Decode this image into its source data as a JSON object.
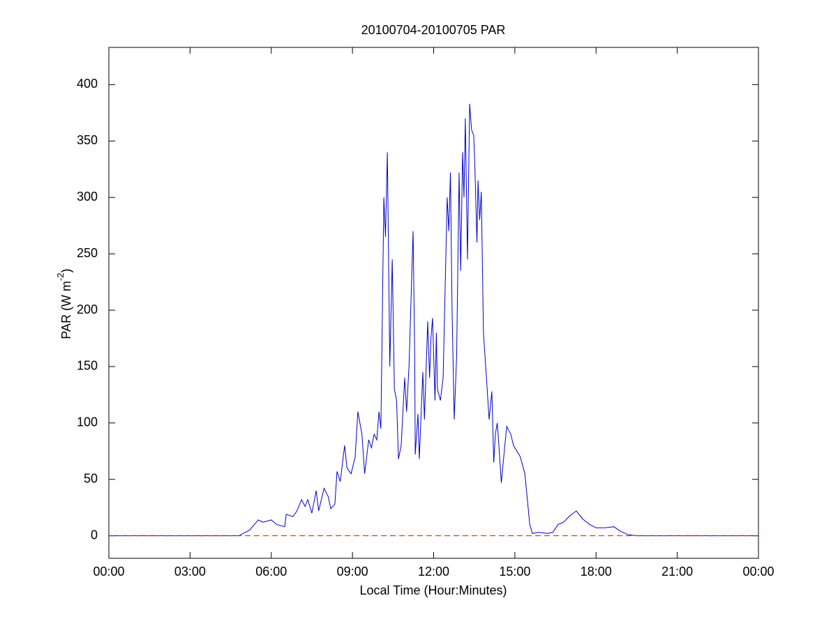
{
  "chart_data": {
    "type": "line",
    "title": "20100704-20100705 PAR",
    "xlabel": "Local Time (Hour:Minutes)",
    "ylabel": {
      "text": "PAR (W m",
      "sup": "-2",
      "end": ")"
    },
    "xlim": [
      0,
      24
    ],
    "ylim": [
      -20,
      433
    ],
    "xticks": [
      {
        "value": 0,
        "label": "00:00"
      },
      {
        "value": 3,
        "label": "03:00"
      },
      {
        "value": 6,
        "label": "06:00"
      },
      {
        "value": 9,
        "label": "09:00"
      },
      {
        "value": 12,
        "label": "12:00"
      },
      {
        "value": 15,
        "label": "15:00"
      },
      {
        "value": 18,
        "label": "18:00"
      },
      {
        "value": 21,
        "label": "21:00"
      },
      {
        "value": 24,
        "label": "00:00"
      }
    ],
    "yticks": [
      0,
      50,
      100,
      150,
      200,
      250,
      300,
      350,
      400
    ],
    "grid": false,
    "reference_line": {
      "value": 0,
      "color": "#ff0000",
      "style": "dashed"
    },
    "series": [
      {
        "color": "#0000cc",
        "x": [
          0,
          4.8,
          5.2,
          5.52,
          5.7,
          6.0,
          6.2,
          6.5,
          6.55,
          6.8,
          6.95,
          7.12,
          7.25,
          7.35,
          7.5,
          7.66,
          7.75,
          7.95,
          8.1,
          8.2,
          8.35,
          8.43,
          8.55,
          8.71,
          8.8,
          8.95,
          9.1,
          9.2,
          9.35,
          9.45,
          9.6,
          9.7,
          9.8,
          9.9,
          9.98,
          10.05,
          10.16,
          10.22,
          10.29,
          10.38,
          10.47,
          10.55,
          10.63,
          10.7,
          10.8,
          10.93,
          11.0,
          11.09,
          11.24,
          11.3,
          11.32,
          11.42,
          11.47,
          11.6,
          11.66,
          11.78,
          11.85,
          11.9,
          11.96,
          12.05,
          12.1,
          12.14,
          12.25,
          12.35,
          12.5,
          12.56,
          12.62,
          12.68,
          12.76,
          12.85,
          12.94,
          13.0,
          13.07,
          13.12,
          13.17,
          13.25,
          13.33,
          13.4,
          13.48,
          13.52,
          13.6,
          13.64,
          13.7,
          13.76,
          13.84,
          13.95,
          14.05,
          14.15,
          14.22,
          14.28,
          14.35,
          14.41,
          14.5,
          14.59,
          14.7,
          14.85,
          14.95,
          15.2,
          15.37,
          15.55,
          15.65,
          15.9,
          16.2,
          16.4,
          16.6,
          16.8,
          17.0,
          17.27,
          17.5,
          17.76,
          18.0,
          18.3,
          18.66,
          18.9,
          19.18,
          19.5,
          24
        ],
        "values": [
          0,
          0,
          5,
          14,
          12,
          14,
          10,
          8,
          19,
          17,
          22,
          32,
          26,
          32,
          20,
          40,
          22,
          42,
          35,
          24,
          28,
          57,
          48,
          80,
          60,
          55,
          70,
          110,
          90,
          55,
          85,
          78,
          90,
          85,
          110,
          95,
          300,
          265,
          340,
          150,
          245,
          130,
          120,
          68,
          80,
          140,
          110,
          150,
          270,
          160,
          72,
          108,
          68,
          145,
          103,
          190,
          140,
          175,
          193,
          120,
          180,
          130,
          120,
          140,
          300,
          270,
          322,
          200,
          103,
          160,
          322,
          235,
          340,
          300,
          370,
          245,
          383,
          360,
          355,
          330,
          260,
          315,
          280,
          305,
          180,
          140,
          103,
          128,
          65,
          90,
          100,
          80,
          47,
          70,
          97,
          90,
          80,
          70,
          55,
          10,
          2,
          3,
          2,
          3,
          10,
          12,
          17,
          22,
          15,
          10,
          7,
          7,
          8,
          4,
          1,
          0,
          0
        ]
      }
    ]
  }
}
